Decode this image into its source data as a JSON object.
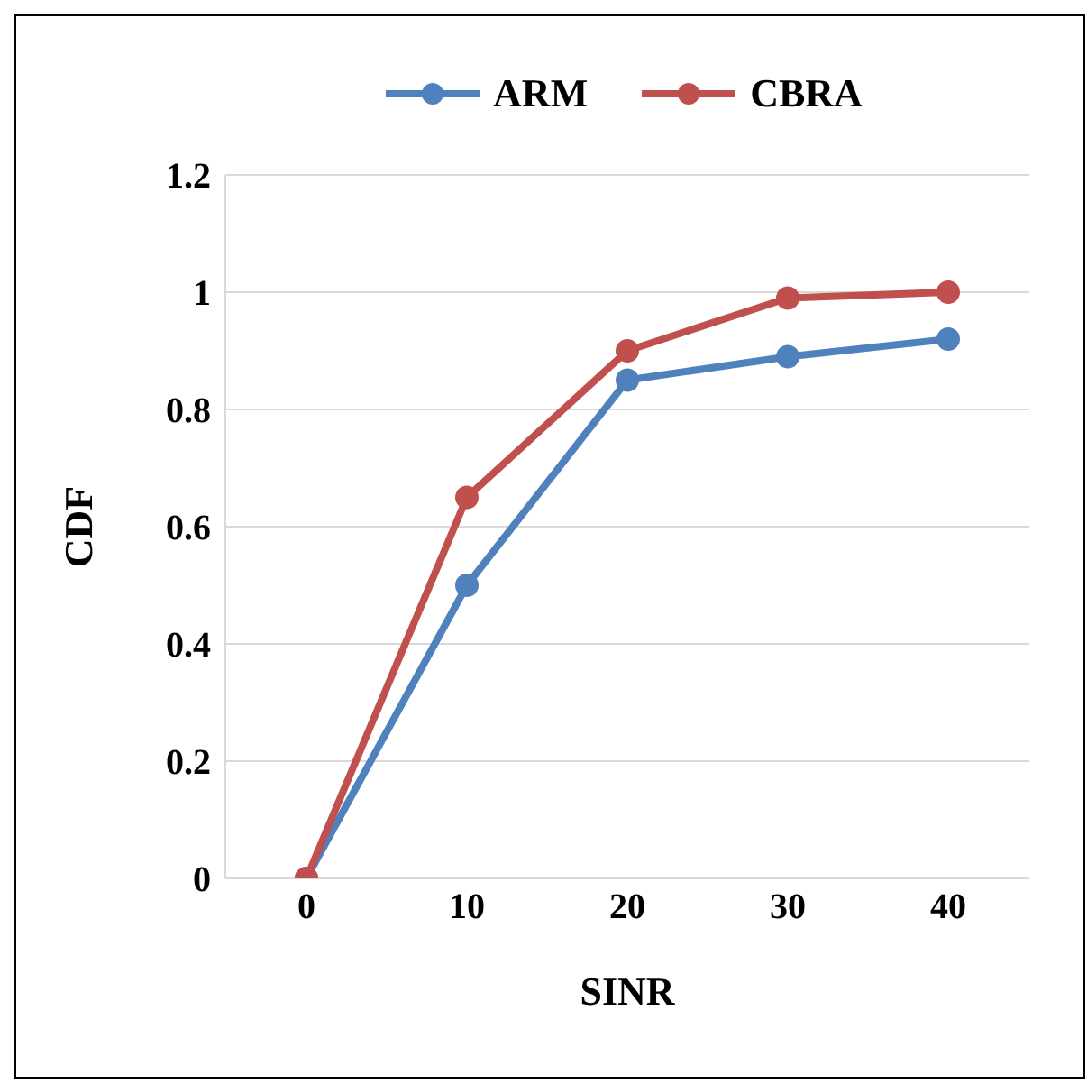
{
  "chart_data": {
    "type": "line",
    "xlabel": "SINR",
    "ylabel": "CDF",
    "categories": [
      "0",
      "10",
      "20",
      "30",
      "40"
    ],
    "series": [
      {
        "name": "ARM",
        "color": "#4f81bd",
        "values": [
          0,
          0.5,
          0.85,
          0.89,
          0.92
        ]
      },
      {
        "name": "CBRA",
        "color": "#c0504d",
        "values": [
          0,
          0.65,
          0.9,
          0.99,
          1.0
        ]
      }
    ],
    "ylim": [
      0,
      1.2
    ],
    "yticks": [
      0,
      0.2,
      0.4,
      0.6,
      0.8,
      1,
      1.2
    ],
    "grid": "y",
    "legend": "top",
    "marker": "circle",
    "line_style": "solid"
  }
}
